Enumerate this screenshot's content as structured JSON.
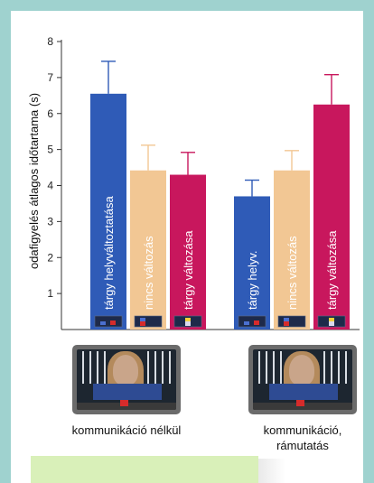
{
  "chart_data": {
    "type": "bar",
    "ylabel": "odafigyelés átlagos időtartama (s)",
    "ylim": [
      0,
      8
    ],
    "yticks": [
      "1",
      "2",
      "3",
      "4",
      "5",
      "6",
      "7",
      "8"
    ],
    "groups": [
      {
        "caption": "kommunikáció nélkül",
        "bars": [
          {
            "label": "tárgy helyváltoztatása",
            "value": 6.55,
            "error": 0.9,
            "color": "#2f5bb7"
          },
          {
            "label": "nincs változás",
            "value": 4.42,
            "error": 0.7,
            "color": "#f2c794"
          },
          {
            "label": "tárgy változása",
            "value": 4.3,
            "error": 0.62,
            "color": "#c8175d"
          }
        ]
      },
      {
        "caption": "kommunikáció, rámutatás",
        "bars": [
          {
            "label": "tárgy helyv.",
            "value": 3.7,
            "error": 0.45,
            "color": "#2f5bb7"
          },
          {
            "label": "nincs változás",
            "value": 4.42,
            "error": 0.55,
            "color": "#f2c794"
          },
          {
            "label": "tárgy változása",
            "value": 6.25,
            "error": 0.83,
            "color": "#c8175d"
          }
        ]
      }
    ]
  },
  "captions": {
    "left": "kommunikáció nélkül",
    "right_line1": "kommunikáció,",
    "right_line2": "rámutatás"
  },
  "colors": {
    "background": "#9fd2cf",
    "note_box": "#d9f0b9"
  }
}
